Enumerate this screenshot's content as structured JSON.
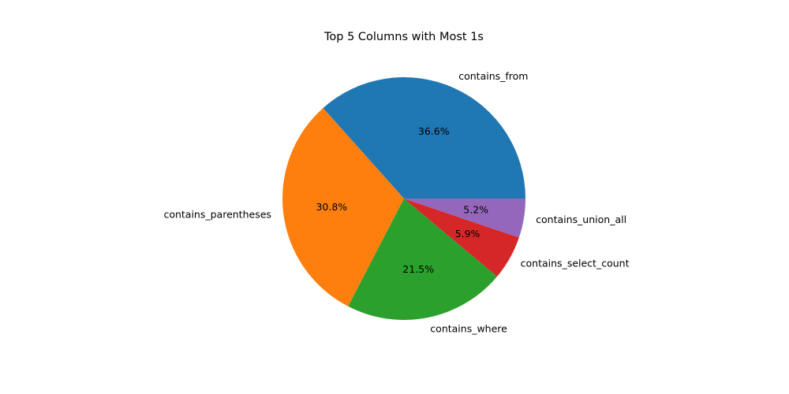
{
  "chart_data": {
    "type": "pie",
    "title": "Top 5 Columns with Most 1s",
    "start_angle_deg": 0,
    "direction": "counterclockwise",
    "slices": [
      {
        "label": "contains_from",
        "value": 36.6,
        "pct_label": "36.6%",
        "color": "#1f77b4"
      },
      {
        "label": "contains_parentheses",
        "value": 30.8,
        "pct_label": "30.8%",
        "color": "#ff7f0e"
      },
      {
        "label": "contains_where",
        "value": 21.5,
        "pct_label": "21.5%",
        "color": "#2ca02c"
      },
      {
        "label": "contains_select_count",
        "value": 5.9,
        "pct_label": "5.9%",
        "color": "#d62728"
      },
      {
        "label": "contains_union_all",
        "value": 5.2,
        "pct_label": "5.2%",
        "color": "#9467bd"
      }
    ]
  }
}
